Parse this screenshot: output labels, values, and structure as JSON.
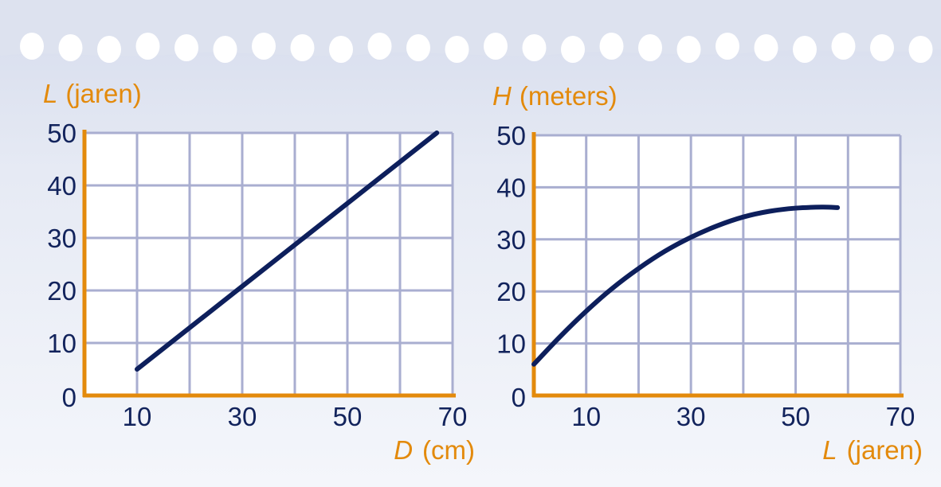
{
  "colors": {
    "axis": "#e38a0c",
    "grid": "#a9aed0",
    "grid_bg": "#ffffff",
    "curve": "#0d1f5c",
    "ticks": "#12235c",
    "paper_band": "#dde2ef"
  },
  "chart_data": [
    {
      "type": "line",
      "xlabel_var": "D",
      "xlabel_unit": "(cm)",
      "ylabel_var": "L",
      "ylabel_unit": "(jaren)",
      "xlim": [
        0,
        70
      ],
      "ylim": [
        0,
        50
      ],
      "x_ticks": [
        10,
        30,
        50,
        70
      ],
      "y_ticks": [
        0,
        10,
        20,
        30,
        40,
        50
      ],
      "grid": true,
      "series": [
        {
          "x": [
            10,
            67
          ],
          "y": [
            5,
            50
          ]
        }
      ]
    },
    {
      "type": "line",
      "xlabel_var": "L",
      "xlabel_unit": "(jaren)",
      "ylabel_var": "H",
      "ylabel_unit": "(meters)",
      "xlim": [
        0,
        70
      ],
      "ylim": [
        0,
        50
      ],
      "x_ticks": [
        10,
        30,
        50,
        70
      ],
      "y_ticks": [
        0,
        10,
        20,
        30,
        40,
        50
      ],
      "grid": true,
      "series": [
        {
          "x": [
            0,
            5,
            10,
            15,
            20,
            25,
            30,
            35,
            40,
            45,
            50,
            55,
            58
          ],
          "y": [
            6,
            11.3,
            16.2,
            20.6,
            24.4,
            27.7,
            30.4,
            32.6,
            34.3,
            35.4,
            36,
            36.2,
            36.1
          ]
        }
      ]
    }
  ]
}
